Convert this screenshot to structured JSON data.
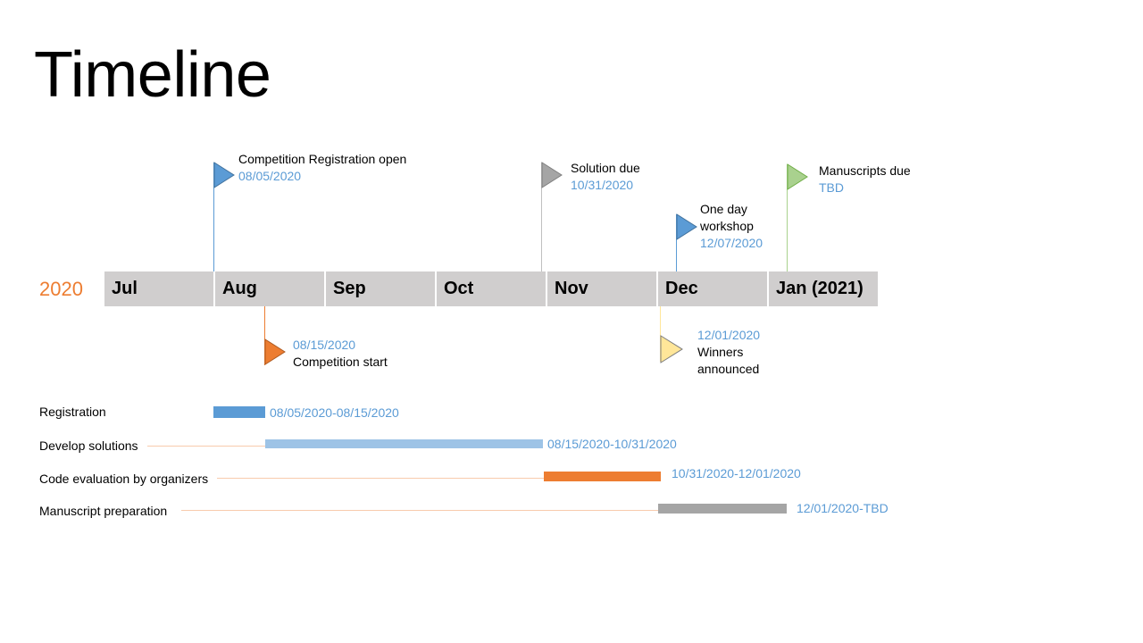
{
  "slide": {
    "title": "Timeline",
    "year_label": "2020"
  },
  "months": [
    "Jul",
    "Aug",
    "Sep",
    "Oct",
    "Nov",
    "Dec",
    "Jan (2021)"
  ],
  "milestones": {
    "registration_open": {
      "label": "Competition Registration open",
      "date": "08/05/2020",
      "color": "#5B9BD5"
    },
    "competition_start": {
      "date": "08/15/2020",
      "label": "Competition start",
      "color": "#ED7D31"
    },
    "solution_due": {
      "label": "Solution due",
      "date": "10/31/2020",
      "color": "#A5A5A5"
    },
    "winners_announced": {
      "date": "12/01/2020",
      "label_line1": "Winners",
      "label_line2": "announced",
      "color": "#FFE699"
    },
    "workshop": {
      "label_line1": "One day",
      "label_line2": "workshop",
      "date": "12/07/2020",
      "color": "#5B9BD5"
    },
    "manuscripts_due": {
      "label": "Manuscripts due",
      "date": "TBD",
      "color": "#A9D18E"
    }
  },
  "tasks": [
    {
      "name": "Registration",
      "range": "08/05/2020-08/15/2020",
      "color": "#5B9BD5"
    },
    {
      "name": "Develop solutions",
      "range": "08/15/2020-10/31/2020",
      "color": "#9DC3E6"
    },
    {
      "name": "Code evaluation by organizers",
      "range": "10/31/2020-12/01/2020",
      "color": "#ED7D31"
    },
    {
      "name": "Manuscript preparation",
      "range": "12/01/2020-TBD",
      "color": "#A5A5A5"
    }
  ]
}
